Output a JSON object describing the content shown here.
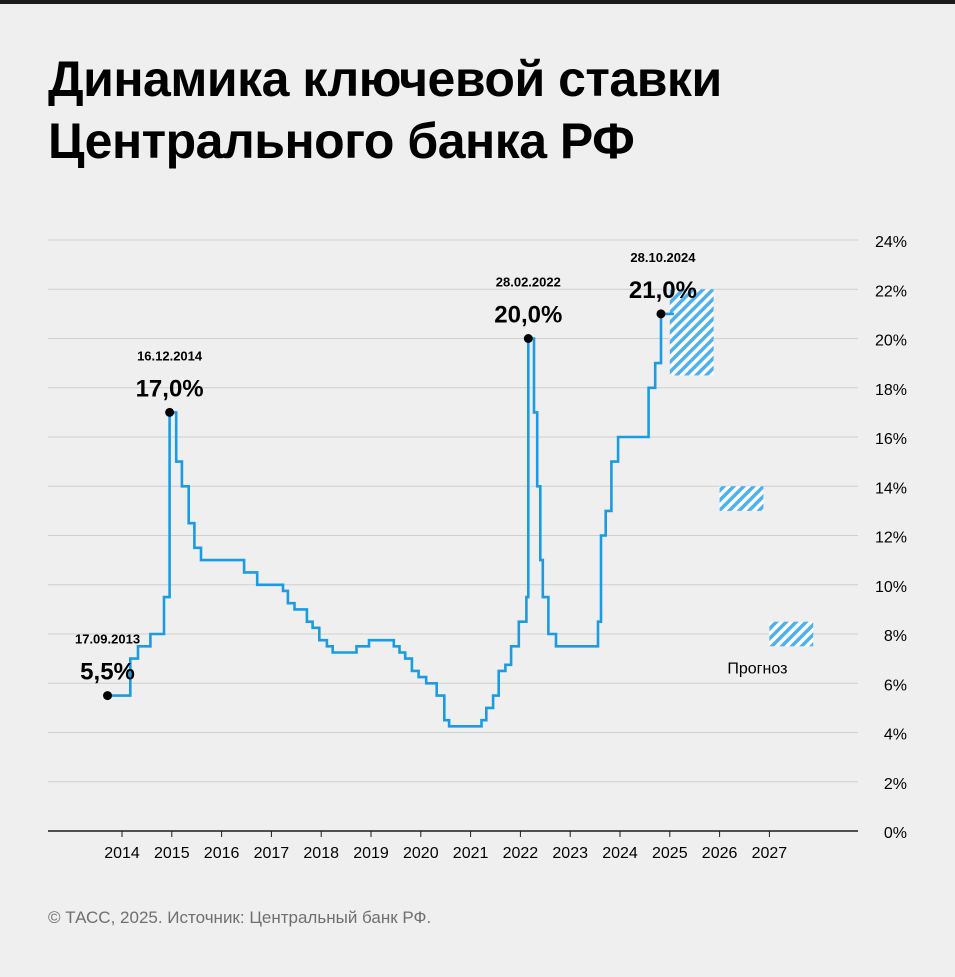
{
  "title_lines": [
    "Динамика ключевой ставки",
    "Центрального банка РФ"
  ],
  "footer": "© ТАСС, 2025. Источник: Центральный банк РФ.",
  "colors": {
    "line": "#1a9be3",
    "forecast": "#4fb0ee",
    "grid": "#cfcfcf",
    "axis": "#1a1a1a",
    "text": "#000000"
  },
  "chart_data": {
    "type": "line",
    "line_shape": "step",
    "title": "Динамика ключевой ставки Центрального банка РФ",
    "xlabel": "",
    "ylabel": "",
    "ylim": [
      0,
      24
    ],
    "yticks": [
      0,
      2,
      4,
      6,
      8,
      10,
      12,
      14,
      16,
      18,
      20,
      22,
      24
    ],
    "ytick_labels": [
      "0%",
      "2%",
      "4%",
      "6%",
      "8%",
      "10%",
      "12%",
      "14%",
      "16%",
      "18%",
      "20%",
      "22%",
      "24%"
    ],
    "xticks": [
      "2014",
      "2015",
      "2016",
      "2017",
      "2018",
      "2019",
      "2020",
      "2021",
      "2022",
      "2023",
      "2024",
      "2025",
      "2026",
      "2027"
    ],
    "grid": true,
    "y_axis_position": "right",
    "series": [
      {
        "name": "",
        "points": [
          [
            "2013-09-17",
            5.5
          ],
          [
            "2014-03-03",
            7.0
          ],
          [
            "2014-04-28",
            7.5
          ],
          [
            "2014-07-28",
            8.0
          ],
          [
            "2014-11-05",
            9.5
          ],
          [
            "2014-12-16",
            17.0
          ],
          [
            "2015-02-02",
            15.0
          ],
          [
            "2015-03-16",
            14.0
          ],
          [
            "2015-05-05",
            12.5
          ],
          [
            "2015-06-16",
            11.5
          ],
          [
            "2015-08-03",
            11.0
          ],
          [
            "2016-06-14",
            10.5
          ],
          [
            "2016-09-19",
            10.0
          ],
          [
            "2017-03-27",
            9.75
          ],
          [
            "2017-05-02",
            9.25
          ],
          [
            "2017-06-19",
            9.0
          ],
          [
            "2017-09-18",
            8.5
          ],
          [
            "2017-10-30",
            8.25
          ],
          [
            "2017-12-18",
            7.75
          ],
          [
            "2018-02-12",
            7.5
          ],
          [
            "2018-03-26",
            7.25
          ],
          [
            "2018-09-17",
            7.5
          ],
          [
            "2018-12-17",
            7.75
          ],
          [
            "2019-06-17",
            7.5
          ],
          [
            "2019-07-29",
            7.25
          ],
          [
            "2019-09-09",
            7.0
          ],
          [
            "2019-10-28",
            6.5
          ],
          [
            "2019-12-16",
            6.25
          ],
          [
            "2020-02-10",
            6.0
          ],
          [
            "2020-04-27",
            5.5
          ],
          [
            "2020-06-22",
            4.5
          ],
          [
            "2020-07-27",
            4.25
          ],
          [
            "2021-03-22",
            4.5
          ],
          [
            "2021-04-26",
            5.0
          ],
          [
            "2021-06-15",
            5.5
          ],
          [
            "2021-07-26",
            6.5
          ],
          [
            "2021-09-13",
            6.75
          ],
          [
            "2021-10-25",
            7.5
          ],
          [
            "2021-12-20",
            8.5
          ],
          [
            "2022-02-14",
            9.5
          ],
          [
            "2022-02-28",
            20.0
          ],
          [
            "2022-04-11",
            17.0
          ],
          [
            "2022-05-04",
            14.0
          ],
          [
            "2022-05-27",
            11.0
          ],
          [
            "2022-06-14",
            9.5
          ],
          [
            "2022-07-25",
            8.0
          ],
          [
            "2022-09-19",
            7.5
          ],
          [
            "2023-07-24",
            8.5
          ],
          [
            "2023-08-15",
            12.0
          ],
          [
            "2023-09-18",
            13.0
          ],
          [
            "2023-10-30",
            15.0
          ],
          [
            "2023-12-18",
            16.0
          ],
          [
            "2024-07-29",
            18.0
          ],
          [
            "2024-09-16",
            19.0
          ],
          [
            "2024-10-28",
            21.0
          ],
          [
            "2025-01-31",
            21.0
          ]
        ]
      }
    ],
    "annotations": [
      {
        "date_label": "17.09.2013",
        "value_label": "5,5%",
        "x": "2013-09-17",
        "y": 5.5
      },
      {
        "date_label": "16.12.2014",
        "value_label": "17,0%",
        "x": "2014-12-16",
        "y": 17.0
      },
      {
        "date_label": "28.02.2022",
        "value_label": "20,0%",
        "x": "2022-02-28",
        "y": 20.0
      },
      {
        "date_label": "28.10.2024",
        "value_label": "21,0%",
        "x": "2024-10-28",
        "y": 21.0
      }
    ],
    "forecast": {
      "label": "Прогноз",
      "ranges": [
        {
          "year": "2025",
          "low": 18.5,
          "high": 22.0
        },
        {
          "year": "2026",
          "low": 13.0,
          "high": 14.0
        },
        {
          "year": "2027",
          "low": 7.5,
          "high": 8.5
        }
      ]
    }
  }
}
